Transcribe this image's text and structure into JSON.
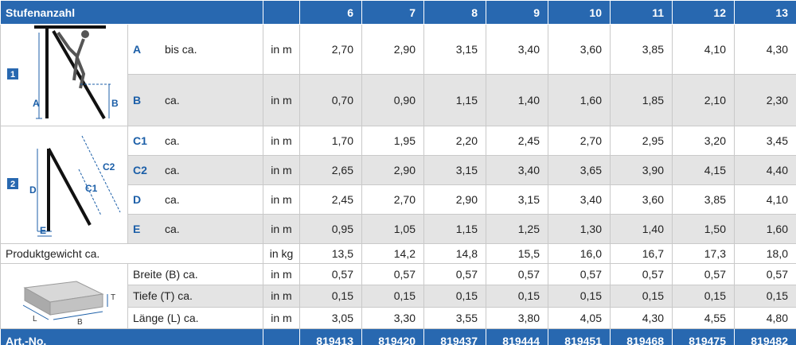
{
  "header": {
    "label": "Stufenanzahl",
    "columns": [
      "6",
      "7",
      "8",
      "9",
      "10",
      "11",
      "12",
      "13"
    ]
  },
  "sections": [
    {
      "marker": "1",
      "diagram_labels": [
        "A",
        "B"
      ],
      "rows": [
        {
          "key": "A",
          "text": "bis ca.",
          "unit": "in m",
          "values": [
            "2,70",
            "2,90",
            "3,15",
            "3,40",
            "3,60",
            "3,85",
            "4,10",
            "4,30"
          ]
        },
        {
          "key": "B",
          "text": "ca.",
          "unit": "in m",
          "values": [
            "0,70",
            "0,90",
            "1,15",
            "1,40",
            "1,60",
            "1,85",
            "2,10",
            "2,30"
          ]
        }
      ]
    },
    {
      "marker": "2",
      "diagram_labels": [
        "C2",
        "C1",
        "D",
        "E"
      ],
      "rows": [
        {
          "key": "C1",
          "text": "ca.",
          "unit": "in m",
          "values": [
            "1,70",
            "1,95",
            "2,20",
            "2,45",
            "2,70",
            "2,95",
            "3,20",
            "3,45"
          ]
        },
        {
          "key": "C2",
          "text": "ca.",
          "unit": "in m",
          "values": [
            "2,65",
            "2,90",
            "3,15",
            "3,40",
            "3,65",
            "3,90",
            "4,15",
            "4,40"
          ]
        },
        {
          "key": "D",
          "text": "ca.",
          "unit": "in m",
          "values": [
            "2,45",
            "2,70",
            "2,90",
            "3,15",
            "3,40",
            "3,60",
            "3,85",
            "4,10"
          ]
        },
        {
          "key": "E",
          "text": "ca.",
          "unit": "in m",
          "values": [
            "0,95",
            "1,05",
            "1,15",
            "1,25",
            "1,30",
            "1,40",
            "1,50",
            "1,60"
          ]
        }
      ]
    }
  ],
  "weight": {
    "label": "Produktgewicht ca.",
    "unit": "in kg",
    "values": [
      "13,5",
      "14,2",
      "14,8",
      "15,5",
      "16,0",
      "16,7",
      "17,3",
      "18,0"
    ]
  },
  "package": {
    "diagram_labels": [
      "T",
      "L",
      "B"
    ],
    "rows": [
      {
        "label": "Breite (B) ca.",
        "unit": "in m",
        "values": [
          "0,57",
          "0,57",
          "0,57",
          "0,57",
          "0,57",
          "0,57",
          "0,57",
          "0,57"
        ]
      },
      {
        "label": "Tiefe (T) ca.",
        "unit": "in m",
        "values": [
          "0,15",
          "0,15",
          "0,15",
          "0,15",
          "0,15",
          "0,15",
          "0,15",
          "0,15"
        ]
      },
      {
        "label": "Länge (L) ca.",
        "unit": "in m",
        "values": [
          "3,05",
          "3,30",
          "3,55",
          "3,80",
          "4,05",
          "4,30",
          "4,55",
          "4,80"
        ]
      }
    ]
  },
  "article": {
    "label": "Art.-No.",
    "values": [
      "819413",
      "819420",
      "819437",
      "819444",
      "819451",
      "819468",
      "819475",
      "819482"
    ]
  }
}
